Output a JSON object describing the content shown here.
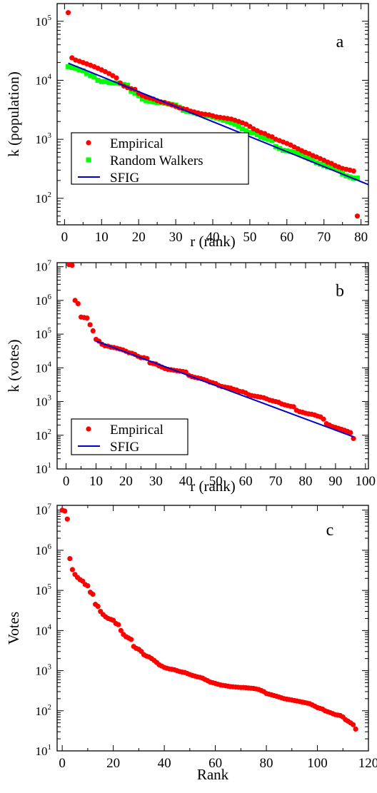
{
  "chart_data": [
    {
      "type": "scatter",
      "panel_label": "a",
      "xlabel": "r (rank)",
      "ylabel": "k (population)",
      "xlim": [
        -2,
        82
      ],
      "ylim_exp": [
        1.55,
        5.3
      ],
      "y_scale": "log",
      "x_ticks": [
        0,
        10,
        20,
        30,
        40,
        50,
        60,
        70,
        80
      ],
      "y_tick_exps": [
        2,
        3,
        4,
        5
      ],
      "legend": {
        "position": "bottom-left",
        "entries": [
          {
            "label": "Empirical",
            "marker": "dot",
            "color": "#ff0000"
          },
          {
            "label": "Random Walkers",
            "marker": "square",
            "color": "#00ff00"
          },
          {
            "label": "SFIG",
            "marker": "line",
            "color": "#0000cc"
          }
        ]
      },
      "series": [
        {
          "marker": "dot",
          "color": "#ff0000",
          "x": [
            1,
            2,
            3,
            4,
            5,
            6,
            7,
            8,
            9,
            10,
            11,
            12,
            13,
            14,
            15,
            16,
            17,
            18,
            19,
            20,
            21,
            22,
            23,
            24,
            25,
            26,
            27,
            28,
            29,
            30,
            31,
            32,
            33,
            34,
            35,
            36,
            37,
            38,
            39,
            40,
            41,
            42,
            43,
            44,
            45,
            46,
            47,
            48,
            49,
            50,
            51,
            52,
            53,
            54,
            55,
            56,
            57,
            58,
            59,
            60,
            61,
            62,
            63,
            64,
            65,
            66,
            67,
            68,
            69,
            70,
            71,
            72,
            73,
            74,
            75,
            76,
            77,
            78,
            79
          ],
          "y": [
            140000,
            24000,
            22000,
            21000,
            20000,
            19000,
            18000,
            17000,
            16000,
            15000,
            14000,
            13000,
            12000,
            11000,
            9000,
            8000,
            7500,
            7200,
            7000,
            6000,
            5500,
            5200,
            5000,
            4800,
            4500,
            4300,
            4200,
            4000,
            3800,
            3600,
            3400,
            3300,
            3200,
            3000,
            2900,
            2800,
            2700,
            2650,
            2600,
            2500,
            2400,
            2350,
            2300,
            2250,
            2200,
            2100,
            2000,
            1900,
            1800,
            1650,
            1500,
            1400,
            1300,
            1250,
            1150,
            1100,
            1000,
            950,
            900,
            850,
            800,
            740,
            690,
            640,
            600,
            570,
            530,
            500,
            470,
            440,
            410,
            390,
            360,
            340,
            320,
            310,
            300,
            290,
            50
          ]
        },
        {
          "marker": "square",
          "color": "#00ff00",
          "x": [
            1,
            2,
            3,
            4,
            5,
            6,
            7,
            8,
            9,
            10,
            11,
            12,
            13,
            14,
            15,
            16,
            17,
            18,
            19,
            20,
            21,
            22,
            23,
            24,
            25,
            26,
            27,
            28,
            29,
            30,
            31,
            32,
            33,
            34,
            35,
            36,
            37,
            38,
            39,
            40,
            41,
            42,
            43,
            44,
            45,
            46,
            47,
            48,
            49,
            50,
            51,
            52,
            53,
            54,
            55,
            56,
            57,
            58,
            59,
            60,
            61,
            62,
            63,
            64,
            65,
            66,
            67,
            68,
            69,
            70,
            71,
            72,
            73,
            74,
            75,
            76,
            77,
            78,
            79
          ],
          "y": [
            17000,
            16500,
            16000,
            15000,
            14500,
            13000,
            12000,
            11500,
            10000,
            9500,
            9500,
            9200,
            9000,
            9000,
            8800,
            8500,
            8200,
            6500,
            6000,
            5500,
            4800,
            4500,
            4400,
            4300,
            4200,
            4200,
            4100,
            4000,
            3900,
            3800,
            3500,
            3100,
            3000,
            2900,
            2800,
            2700,
            2600,
            2550,
            2500,
            2400,
            2300,
            2200,
            2100,
            2000,
            1900,
            1800,
            1650,
            1500,
            1400,
            1300,
            1300,
            1200,
            1100,
            1050,
            1000,
            950,
            750,
            700,
            650,
            640,
            620,
            600,
            580,
            560,
            500,
            470,
            440,
            400,
            380,
            360,
            340,
            330,
            320,
            300,
            260,
            240,
            230,
            220,
            220
          ]
        },
        {
          "marker": "line",
          "color": "#0000cc",
          "x": [
            1,
            82
          ],
          "y": [
            19500,
            170
          ]
        }
      ]
    },
    {
      "type": "scatter",
      "panel_label": "b",
      "xlabel": "r (rank)",
      "ylabel": "k (votes)",
      "xlim": [
        -3,
        101
      ],
      "ylim_exp": [
        1,
        7.12
      ],
      "y_scale": "log",
      "x_ticks": [
        0,
        10,
        20,
        30,
        40,
        50,
        60,
        70,
        80,
        90,
        100
      ],
      "y_tick_exps": [
        1,
        2,
        3,
        4,
        5,
        6,
        7
      ],
      "legend": {
        "position": "bottom-left",
        "entries": [
          {
            "label": "Empirical",
            "marker": "dot",
            "color": "#ff0000"
          },
          {
            "label": "SFIG",
            "marker": "line",
            "color": "#0000cc"
          }
        ]
      },
      "series": [
        {
          "marker": "dot",
          "color": "#ff0000",
          "x": [
            1,
            2,
            3,
            4,
            5,
            6,
            7,
            8,
            9,
            10,
            11,
            12,
            13,
            14,
            15,
            16,
            17,
            18,
            19,
            20,
            21,
            22,
            23,
            24,
            25,
            26,
            27,
            28,
            29,
            30,
            31,
            32,
            33,
            34,
            35,
            36,
            37,
            38,
            39,
            40,
            41,
            42,
            43,
            44,
            45,
            46,
            47,
            48,
            49,
            50,
            51,
            52,
            53,
            54,
            55,
            56,
            57,
            58,
            59,
            60,
            61,
            62,
            63,
            64,
            65,
            66,
            67,
            68,
            69,
            70,
            71,
            72,
            73,
            74,
            75,
            76,
            77,
            78,
            79,
            80,
            81,
            82,
            83,
            84,
            85,
            86,
            87,
            88,
            89,
            90,
            91,
            92,
            93,
            94,
            95,
            96
          ],
          "y": [
            11500000,
            11000000,
            1000000,
            800000,
            320000,
            310000,
            300000,
            190000,
            125000,
            70000,
            62000,
            50000,
            45000,
            44000,
            41000,
            40000,
            38000,
            36000,
            34000,
            31000,
            28000,
            27000,
            25000,
            22000,
            20000,
            20000,
            19000,
            14000,
            13500,
            13000,
            11500,
            10500,
            9500,
            9000,
            8800,
            8500,
            8200,
            8000,
            7800,
            7500,
            6000,
            5500,
            5200,
            5000,
            4800,
            4500,
            4200,
            3800,
            3600,
            3400,
            3000,
            2800,
            2700,
            2600,
            2500,
            2300,
            2200,
            2000,
            1950,
            1800,
            1600,
            1500,
            1450,
            1400,
            1350,
            1300,
            1200,
            1100,
            1050,
            1000,
            950,
            850,
            800,
            760,
            720,
            700,
            550,
            500,
            480,
            450,
            430,
            420,
            400,
            370,
            350,
            300,
            220,
            200,
            180,
            170,
            160,
            150,
            140,
            130,
            120,
            80
          ]
        },
        {
          "marker": "line",
          "color": "#0000cc",
          "x": [
            10,
            96
          ],
          "y": [
            62000,
            90
          ]
        }
      ]
    },
    {
      "type": "scatter",
      "panel_label": "c",
      "xlabel": "Rank",
      "ylabel": "Votes",
      "xlim": [
        -2,
        120
      ],
      "ylim_exp": [
        1,
        7.12
      ],
      "y_scale": "log",
      "x_ticks": [
        0,
        20,
        40,
        60,
        80,
        100,
        120
      ],
      "y_tick_exps": [
        1,
        2,
        3,
        4,
        5,
        6,
        7
      ],
      "legend": null,
      "series": [
        {
          "marker": "dot",
          "color": "#ff0000",
          "x": [
            0,
            1,
            2,
            3,
            4,
            5,
            6,
            7,
            8,
            9,
            10,
            11,
            12,
            13,
            14,
            15,
            16,
            17,
            18,
            19,
            20,
            21,
            22,
            23,
            24,
            25,
            26,
            27,
            28,
            29,
            30,
            31,
            32,
            33,
            34,
            35,
            36,
            37,
            38,
            39,
            40,
            41,
            42,
            43,
            44,
            45,
            46,
            47,
            48,
            49,
            50,
            51,
            52,
            53,
            54,
            55,
            56,
            57,
            58,
            59,
            60,
            61,
            62,
            63,
            64,
            65,
            66,
            67,
            68,
            69,
            70,
            71,
            72,
            73,
            74,
            75,
            76,
            77,
            78,
            79,
            80,
            81,
            82,
            83,
            84,
            85,
            86,
            87,
            88,
            89,
            90,
            91,
            92,
            93,
            94,
            95,
            96,
            97,
            98,
            99,
            100,
            101,
            102,
            103,
            104,
            105,
            106,
            107,
            108,
            109,
            110,
            111,
            112,
            113,
            114,
            115
          ],
          "y": [
            10000000,
            9500000,
            6000000,
            620000,
            330000,
            250000,
            210000,
            185000,
            170000,
            140000,
            130000,
            90000,
            80000,
            45000,
            40000,
            30000,
            25000,
            22000,
            20000,
            19000,
            18000,
            15000,
            14000,
            10000,
            8000,
            7000,
            6500,
            6000,
            4000,
            3600,
            3400,
            3000,
            2500,
            2300,
            2200,
            2000,
            1800,
            1600,
            1400,
            1300,
            1200,
            1150,
            1100,
            1080,
            1050,
            1000,
            950,
            920,
            900,
            850,
            800,
            760,
            730,
            700,
            680,
            650,
            600,
            560,
            520,
            500,
            480,
            460,
            440,
            430,
            420,
            410,
            400,
            395,
            390,
            385,
            380,
            380,
            375,
            370,
            365,
            360,
            350,
            340,
            320,
            300,
            270,
            260,
            250,
            240,
            230,
            220,
            210,
            200,
            195,
            190,
            185,
            180,
            175,
            170,
            165,
            160,
            155,
            150,
            140,
            130,
            120,
            115,
            110,
            100,
            95,
            90,
            85,
            80,
            78,
            76,
            70,
            60,
            55,
            50,
            45,
            35
          ]
        }
      ]
    }
  ]
}
